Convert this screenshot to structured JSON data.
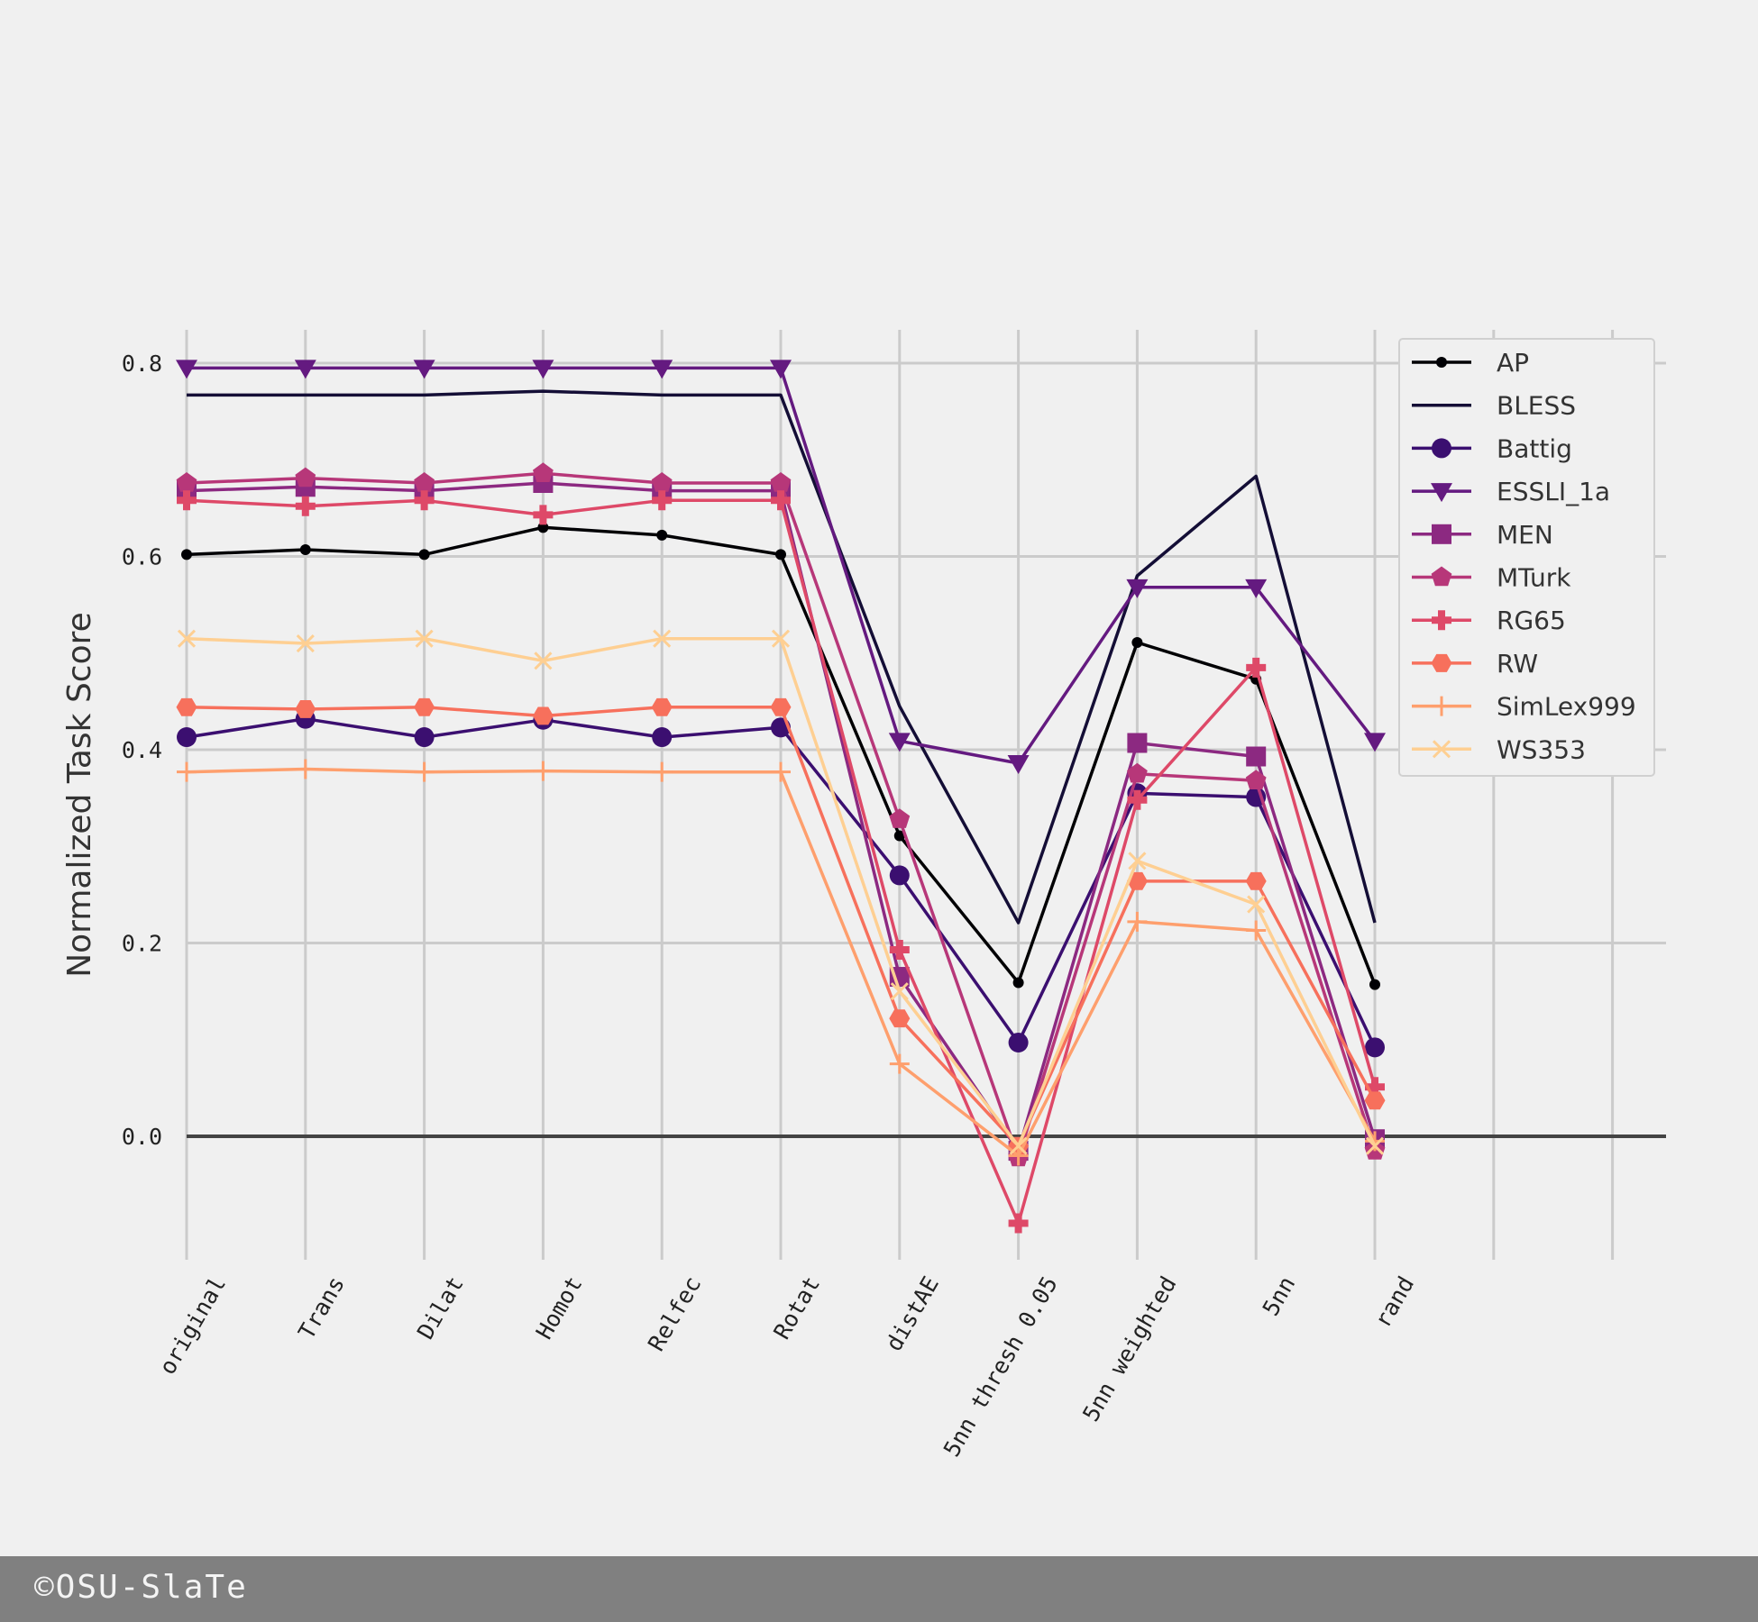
{
  "chart_data": {
    "type": "line",
    "title": "",
    "xlabel": "",
    "ylabel": "Normalized Task Score",
    "categories": [
      "original",
      "Trans",
      "Dilat",
      "Homot",
      "Relfec",
      "Rotat",
      "distAE",
      "5nn thresh 0.05",
      "5nn weighted",
      "5nn",
      "rand"
    ],
    "ylim": [
      -0.13,
      0.84
    ],
    "yticks": [
      "0.0",
      "0.2",
      "0.4",
      "0.6",
      "0.8"
    ],
    "ytick_values": [
      0.0,
      0.2,
      0.4,
      0.6,
      0.8
    ],
    "legend_position": "top-right",
    "series": [
      {
        "name": "AP",
        "color": "#000004",
        "marker": "dot",
        "values": [
          0.602,
          0.607,
          0.602,
          0.63,
          0.622,
          0.602,
          0.311,
          0.159,
          0.511,
          0.473,
          0.157
        ]
      },
      {
        "name": "BLESS",
        "color": "#140e36",
        "marker": "none",
        "values": [
          0.767,
          0.767,
          0.767,
          0.771,
          0.767,
          0.767,
          0.445,
          0.221,
          0.58,
          0.683,
          0.221
        ]
      },
      {
        "name": "Battig",
        "color": "#3b0f70",
        "marker": "circle",
        "values": [
          0.413,
          0.432,
          0.413,
          0.431,
          0.413,
          0.423,
          0.27,
          0.097,
          0.355,
          0.351,
          0.092
        ]
      },
      {
        "name": "ESSLI_1a",
        "color": "#641a80",
        "marker": "triangle-down",
        "values": [
          0.795,
          0.795,
          0.795,
          0.795,
          0.795,
          0.795,
          0.409,
          0.386,
          0.568,
          0.568,
          0.409
        ]
      },
      {
        "name": "MEN",
        "color": "#8c2981",
        "marker": "square",
        "values": [
          0.668,
          0.672,
          0.668,
          0.676,
          0.668,
          0.668,
          0.165,
          -0.015,
          0.407,
          0.393,
          -0.003
        ]
      },
      {
        "name": "MTurk",
        "color": "#b73779",
        "marker": "pentagon",
        "values": [
          0.676,
          0.681,
          0.676,
          0.686,
          0.676,
          0.676,
          0.328,
          -0.022,
          0.375,
          0.368,
          -0.015
        ]
      },
      {
        "name": "RG65",
        "color": "#de4968",
        "marker": "plus-filled",
        "values": [
          0.658,
          0.652,
          0.658,
          0.643,
          0.658,
          0.658,
          0.193,
          -0.09,
          0.348,
          0.485,
          0.051
        ]
      },
      {
        "name": "RW",
        "color": "#f7705c",
        "marker": "hexagon",
        "values": [
          0.444,
          0.442,
          0.444,
          0.435,
          0.444,
          0.444,
          0.122,
          -0.01,
          0.264,
          0.264,
          0.037
        ]
      },
      {
        "name": "SimLex999",
        "color": "#fe9f6d",
        "marker": "plus",
        "values": [
          0.377,
          0.38,
          0.377,
          0.378,
          0.377,
          0.377,
          0.075,
          -0.02,
          0.222,
          0.213,
          -0.005
        ]
      },
      {
        "name": "WS353",
        "color": "#fecf92",
        "marker": "x",
        "values": [
          0.515,
          0.51,
          0.515,
          0.492,
          0.515,
          0.515,
          0.15,
          -0.01,
          0.285,
          0.24,
          -0.01
        ]
      }
    ]
  },
  "footer": {
    "text": "©OSU-SlaTe"
  }
}
